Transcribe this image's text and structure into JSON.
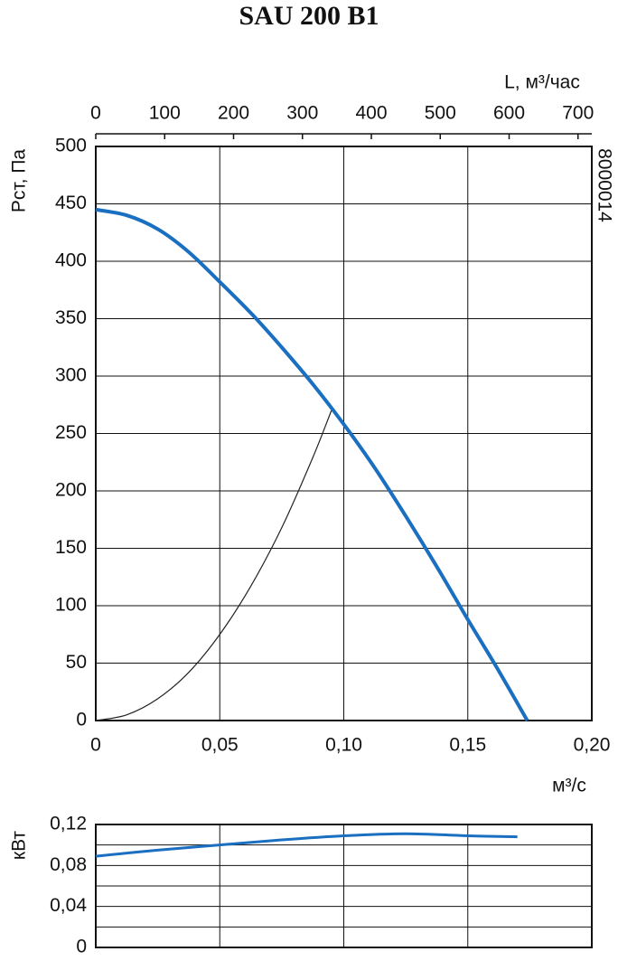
{
  "chart_data": [
    {
      "type": "line",
      "title": "SAU 200 B1",
      "xlabel": "м³/с",
      "ylabel": "Pст, Па",
      "x2label": "L, м³/час",
      "code": "8000014",
      "xlim": [
        0,
        0.2
      ],
      "xticks": [
        0,
        {
          "value": 0.05,
          "label": "0,05"
        },
        {
          "value": 0.1,
          "label": "0,10"
        },
        {
          "value": 0.15,
          "label": "0,15"
        },
        {
          "value": 0.2,
          "label": "0,20"
        }
      ],
      "ylim": [
        0,
        500
      ],
      "yticks": [
        0,
        50,
        100,
        150,
        200,
        250,
        300,
        350,
        400,
        450,
        500
      ],
      "x2lim": [
        0,
        720
      ],
      "x2ticks": [
        0,
        100,
        200,
        300,
        400,
        500,
        600,
        700
      ],
      "grid": true,
      "series": [
        {
          "color": "#1a6fc0",
          "width": 4,
          "x": [
            0,
            0.0125,
            0.025,
            0.0375,
            0.05,
            0.0625,
            0.075,
            0.0875,
            0.1,
            0.1125,
            0.125,
            0.1375,
            0.15,
            0.162,
            0.174
          ],
          "values": [
            445,
            440,
            428,
            408,
            382,
            355,
            325,
            293,
            258,
            220,
            178,
            134,
            88,
            45,
            0
          ]
        },
        {
          "color": "#222222",
          "width": 1.2,
          "x": [
            0,
            0.0125,
            0.025,
            0.0375,
            0.05,
            0.0625,
            0.075,
            0.0875,
            0.095
          ],
          "values": [
            0,
            5,
            19,
            42,
            75,
            117,
            168,
            229,
            270
          ]
        }
      ]
    },
    {
      "type": "line",
      "ylabel": "кВт",
      "xlim": [
        0,
        0.2
      ],
      "xgrid": [
        0.05,
        0.1,
        0.15
      ],
      "ylim": [
        0,
        0.12
      ],
      "yticks": [
        0,
        {
          "value": 0.04,
          "label": "0,04"
        },
        {
          "value": 0.08,
          "label": "0,08"
        },
        {
          "value": 0.12,
          "label": "0,12"
        }
      ],
      "yminor": [
        0.02,
        0.06,
        0.1
      ],
      "grid": true,
      "series": [
        {
          "color": "#1a6fc0",
          "width": 3,
          "x": [
            0,
            0.025,
            0.05,
            0.075,
            0.1,
            0.125,
            0.15,
            0.17
          ],
          "values": [
            0.089,
            0.095,
            0.1,
            0.105,
            0.109,
            0.111,
            0.109,
            0.108
          ]
        }
      ]
    }
  ]
}
